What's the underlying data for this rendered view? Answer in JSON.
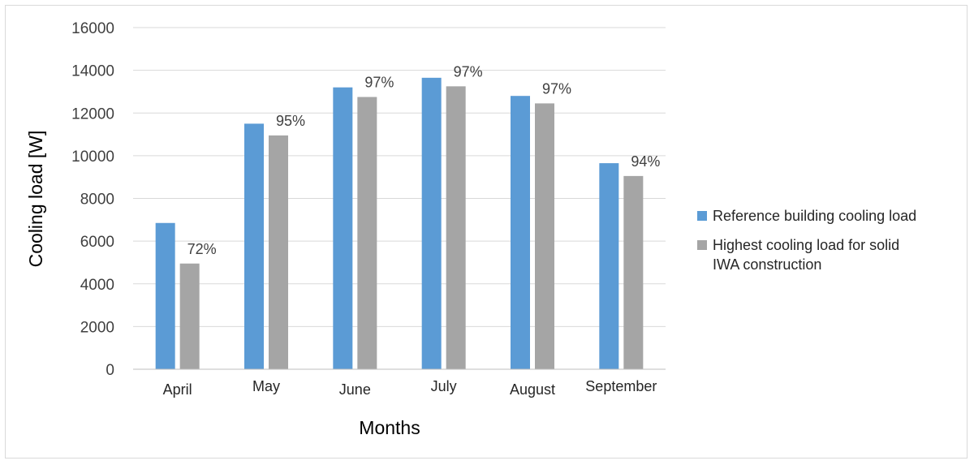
{
  "chart_data": {
    "type": "bar",
    "xlabel": "Months",
    "ylabel": "Cooling load [W]",
    "ylim": [
      0,
      16000
    ],
    "yticks": [
      0,
      2000,
      4000,
      6000,
      8000,
      10000,
      12000,
      14000,
      16000
    ],
    "grid": true,
    "legend_position": "right",
    "categories": [
      "April",
      "May",
      "June",
      "July",
      "August",
      "September"
    ],
    "series": [
      {
        "name": "Reference building cooling load",
        "color": "#5b9bd5",
        "values": [
          6850,
          11500,
          13200,
          13650,
          12800,
          9650
        ]
      },
      {
        "name": "Highest cooling load for solid IWA construction",
        "color": "#a5a5a5",
        "values": [
          4950,
          10950,
          12750,
          13250,
          12450,
          9050
        ],
        "data_labels": [
          "72%",
          "95%",
          "97%",
          "97%",
          "97%",
          "94%"
        ]
      }
    ]
  }
}
